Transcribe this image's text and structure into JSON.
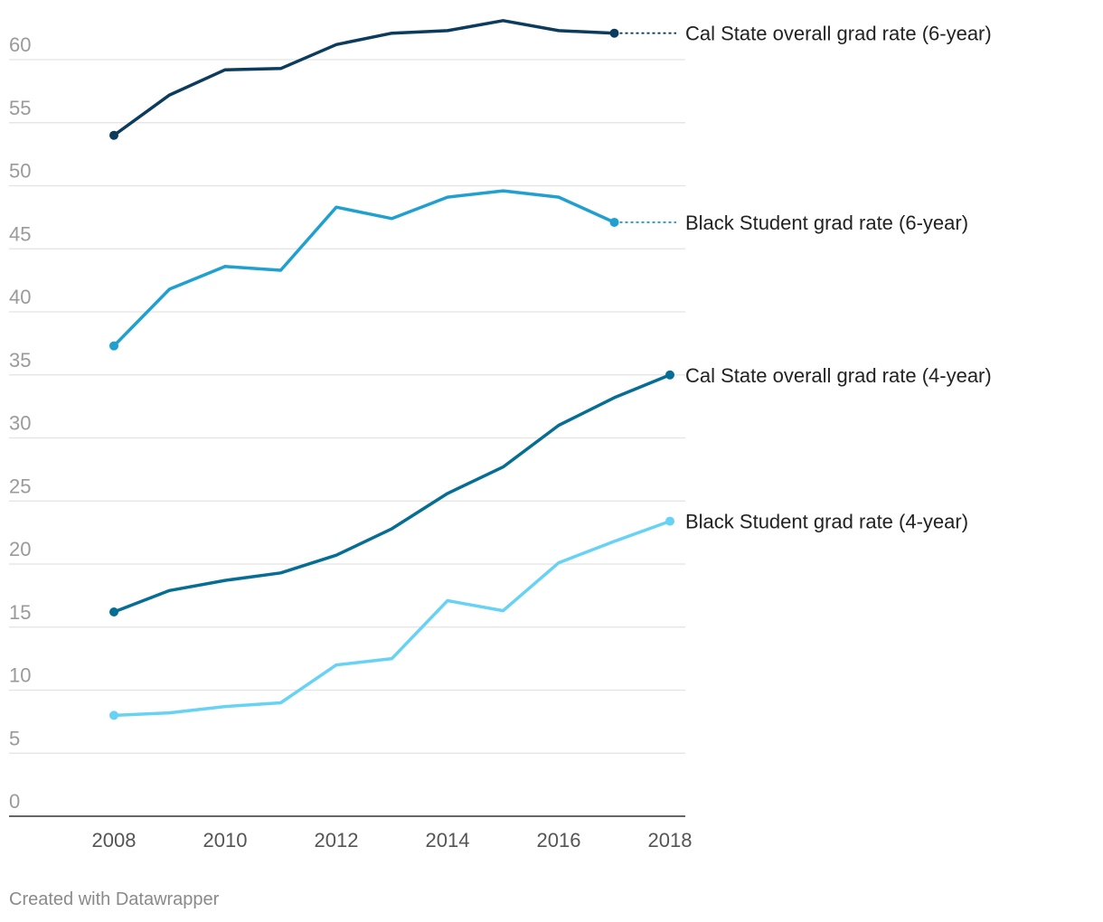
{
  "chart_data": {
    "type": "line",
    "title": "",
    "xlabel": "",
    "ylabel": "",
    "x": [
      2008,
      2009,
      2010,
      2011,
      2012,
      2013,
      2014,
      2015,
      2016,
      2017,
      2018
    ],
    "xlim": [
      2008,
      2018
    ],
    "ylim": [
      0,
      60
    ],
    "y_ticks": [
      0,
      5,
      10,
      15,
      20,
      25,
      30,
      35,
      40,
      45,
      50,
      55,
      60
    ],
    "x_ticks": [
      2008,
      2010,
      2012,
      2014,
      2016,
      2018
    ],
    "grid": true,
    "legend": "direct-labels-right",
    "series": [
      {
        "name": "Cal State overall grad rate (6-year)",
        "color": "#0b3c5d",
        "values": [
          54.0,
          57.2,
          59.2,
          59.3,
          61.2,
          62.1,
          62.3,
          63.1,
          62.3,
          62.1,
          null
        ]
      },
      {
        "name": "Black Student grad rate (6-year)",
        "color": "#1fa0d0",
        "values": [
          37.3,
          41.8,
          43.6,
          43.3,
          48.3,
          47.4,
          49.1,
          49.6,
          49.1,
          47.1,
          null
        ]
      },
      {
        "name": "Cal State overall grad rate (4-year)",
        "color": "#066d94",
        "values": [
          16.2,
          17.9,
          18.7,
          19.3,
          20.7,
          22.8,
          25.6,
          27.7,
          31.0,
          33.2,
          35.0
        ]
      },
      {
        "name": "Black Student grad rate (4-year)",
        "color": "#66d3f5",
        "values": [
          8.0,
          8.2,
          8.7,
          9.0,
          12.0,
          12.5,
          17.1,
          16.3,
          20.1,
          21.8,
          23.4
        ]
      }
    ]
  },
  "footer": {
    "credit": "Created with Datawrapper"
  }
}
